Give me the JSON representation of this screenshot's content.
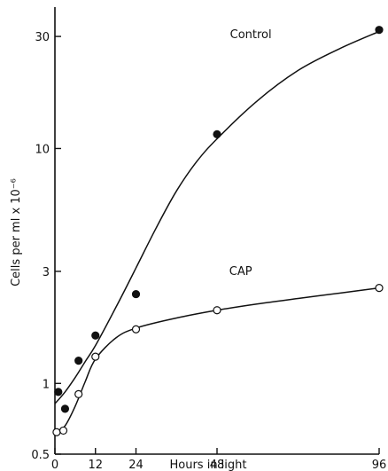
{
  "chart_data": {
    "type": "line",
    "title": "",
    "xlabel": "Hours in light",
    "ylabel": "Cells per ml x 10⁻⁶",
    "yscale": "log",
    "xlim": [
      0,
      96
    ],
    "ylim": [
      0.5,
      40
    ],
    "x_ticks": [
      {
        "value": 0,
        "label": "0"
      },
      {
        "value": 12,
        "label": "12"
      },
      {
        "value": 24,
        "label": "24"
      },
      {
        "value": 48,
        "label": "48"
      },
      {
        "value": 96,
        "label": "96"
      }
    ],
    "y_ticks": [
      {
        "value": 0.5,
        "label": "0.5"
      },
      {
        "value": 1,
        "label": "1"
      },
      {
        "value": 3,
        "label": "3"
      },
      {
        "value": 10,
        "label": "10"
      },
      {
        "value": 30,
        "label": "30"
      }
    ],
    "grid": false,
    "series": [
      {
        "name": "Control",
        "marker": "filled-circle",
        "x": [
          1,
          3,
          7,
          12,
          24,
          48,
          96
        ],
        "y": [
          0.92,
          0.78,
          1.25,
          1.6,
          2.4,
          11.5,
          32
        ]
      },
      {
        "name": "CAP",
        "marker": "open-circle",
        "x": [
          0.5,
          2.5,
          7,
          12,
          24,
          48,
          96
        ],
        "y": [
          0.62,
          0.63,
          0.9,
          1.3,
          1.7,
          2.05,
          2.55
        ]
      }
    ],
    "curves": [
      {
        "series": "Control",
        "x": [
          0,
          3,
          6,
          9,
          12,
          18,
          24,
          30,
          36,
          42,
          48,
          60,
          72,
          84,
          96
        ],
        "y": [
          0.82,
          0.92,
          1.06,
          1.24,
          1.45,
          2.1,
          3.1,
          4.6,
          6.6,
          8.8,
          11.0,
          16.0,
          21.5,
          26.5,
          31.5
        ]
      },
      {
        "series": "CAP",
        "x": [
          0,
          3,
          6,
          9,
          12,
          18,
          24,
          36,
          48,
          60,
          72,
          84,
          96
        ],
        "y": [
          0.6,
          0.66,
          0.8,
          1.02,
          1.27,
          1.56,
          1.72,
          1.9,
          2.05,
          2.18,
          2.3,
          2.42,
          2.55
        ]
      }
    ]
  }
}
